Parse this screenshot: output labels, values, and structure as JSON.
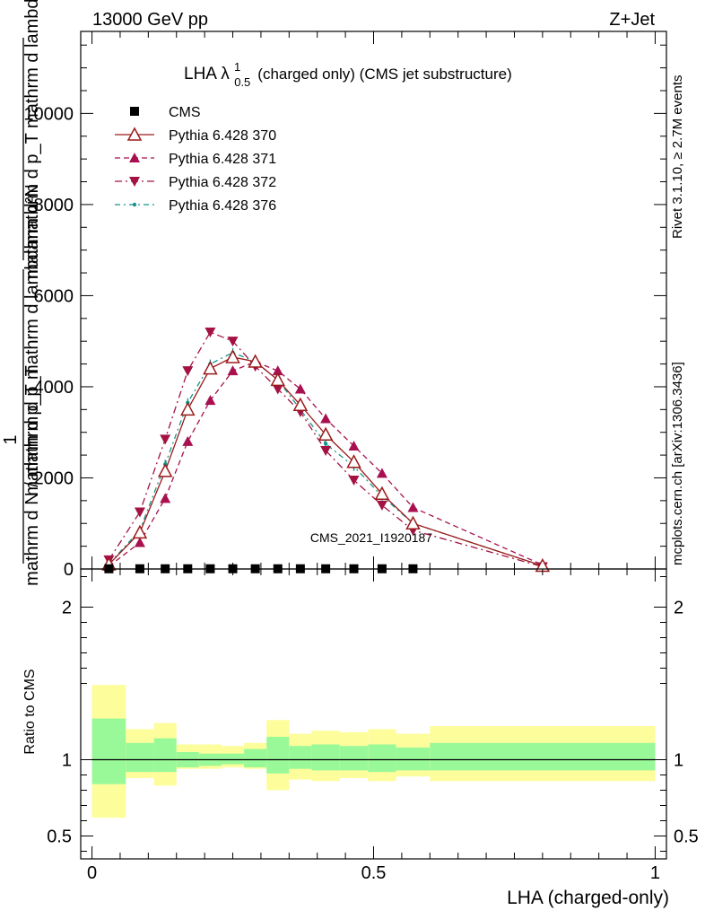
{
  "header": {
    "left": "13000 GeV pp",
    "right": "Z+Jet"
  },
  "side_labels": {
    "rivet": "Rivet 3.1.10, ≥ 2.7M events",
    "mcplots": "mcplots.cern.ch [arXiv:1306.3436]"
  },
  "watermark": "CMS_2021_I1920187",
  "colors": {
    "cms": "#000000",
    "p370": "#9b1b1b",
    "p371": "#a8104f",
    "p372": "#a31243",
    "p376": "#15958c",
    "band_inner": "#99f999",
    "band_outer": "#fdfd9b"
  },
  "chart_data": [
    {
      "type": "line",
      "title": "LHA λ¹₀.₅ (charged only) (CMS jet substructure)",
      "title_main": "LHA λ",
      "title_sup": "1",
      "title_sub": "0.5",
      "title_rest": "(charged only) (CMS jet substructure)",
      "ylabel_top": "mathrm d²N",
      "ylabel_num": "1",
      "ylabel_den": "mathrm d N / mathrm d p_T mathrm d p_T mathrm d lambda",
      "ylabel_lines": [
        "mathrm d²N",
        "mathrm d p_T mathrm d lambda",
        "mathrm d p_T mathrm d lambda",
        "1",
        "mathrm d N / mathrm d p_T"
      ],
      "ylim": [
        0,
        11800
      ],
      "xlim": [
        -0.02,
        1.02
      ],
      "y_ticks": [
        0,
        2000,
        4000,
        6000,
        8000,
        10000
      ],
      "y_tick_labels": [
        "0",
        "2000",
        "4000",
        "6000",
        "8000",
        "10000"
      ],
      "legend_position": "top-left",
      "series": [
        {
          "name": "CMS",
          "marker": "square",
          "x": [
            0.03,
            0.085,
            0.13,
            0.17,
            0.21,
            0.25,
            0.29,
            0.33,
            0.37,
            0.415,
            0.465,
            0.515,
            0.57,
            0.8
          ],
          "y": [
            5,
            5,
            5,
            5,
            5,
            5,
            5,
            5,
            5,
            5,
            5,
            5,
            5,
            5
          ]
        },
        {
          "name": "Pythia 6.428 370",
          "marker": "triangle-up-open",
          "x": [
            0.03,
            0.085,
            0.13,
            0.17,
            0.21,
            0.25,
            0.29,
            0.33,
            0.37,
            0.415,
            0.465,
            0.515,
            0.57,
            0.8
          ],
          "y": [
            100,
            800,
            2150,
            3500,
            4400,
            4650,
            4550,
            4150,
            3600,
            2950,
            2350,
            1650,
            1000,
            70
          ]
        },
        {
          "name": "Pythia 6.428 371",
          "marker": "triangle-up",
          "x": [
            0.03,
            0.085,
            0.13,
            0.17,
            0.21,
            0.25,
            0.29,
            0.33,
            0.37,
            0.415,
            0.465,
            0.515,
            0.57,
            0.8
          ],
          "y": [
            60,
            580,
            1550,
            2800,
            3700,
            4350,
            4550,
            4350,
            3950,
            3300,
            2700,
            2100,
            1350,
            90
          ]
        },
        {
          "name": "Pythia 6.428 372",
          "marker": "triangle-down",
          "x": [
            0.03,
            0.085,
            0.13,
            0.17,
            0.21,
            0.25,
            0.29,
            0.33,
            0.37,
            0.415,
            0.465,
            0.515,
            0.57,
            0.8
          ],
          "y": [
            200,
            1250,
            2850,
            4350,
            5200,
            5000,
            4450,
            3950,
            3450,
            2600,
            1950,
            1400,
            850,
            50
          ]
        },
        {
          "name": "Pythia 6.428 376",
          "marker": "dot",
          "x": [
            0.03,
            0.085,
            0.13,
            0.17,
            0.21,
            0.25,
            0.29,
            0.33,
            0.37,
            0.415,
            0.465,
            0.515,
            0.57,
            0.8
          ],
          "y": [
            110,
            850,
            2300,
            3650,
            4500,
            4750,
            4550,
            4150,
            3500,
            2750,
            2250,
            1600,
            1000,
            70
          ]
        }
      ]
    },
    {
      "type": "area",
      "ylabel": "Ratio to CMS",
      "xlabel": "LHA (charged-only)",
      "ylim": [
        0.35,
        2.25
      ],
      "xlim": [
        -0.02,
        1.02
      ],
      "x_ticks": [
        0,
        0.5,
        1
      ],
      "x_tick_labels": [
        "0",
        "0.5",
        "1"
      ],
      "y_ticks": [
        0.5,
        1,
        2
      ],
      "y_tick_labels": [
        "0.5",
        "1",
        "2"
      ],
      "bins": [
        {
          "x0": 0.0,
          "x1": 0.06,
          "inner": [
            0.84,
            1.27
          ],
          "outer": [
            0.62,
            1.49
          ]
        },
        {
          "x0": 0.06,
          "x1": 0.11,
          "inner": [
            0.92,
            1.11
          ],
          "outer": [
            0.88,
            1.2
          ]
        },
        {
          "x0": 0.11,
          "x1": 0.15,
          "inner": [
            0.92,
            1.14
          ],
          "outer": [
            0.83,
            1.24
          ]
        },
        {
          "x0": 0.15,
          "x1": 0.19,
          "inner": [
            0.95,
            1.05
          ],
          "outer": [
            0.94,
            1.1
          ]
        },
        {
          "x0": 0.19,
          "x1": 0.23,
          "inner": [
            0.96,
            1.04
          ],
          "outer": [
            0.94,
            1.1
          ]
        },
        {
          "x0": 0.23,
          "x1": 0.27,
          "inner": [
            0.97,
            1.04
          ],
          "outer": [
            0.95,
            1.09
          ]
        },
        {
          "x0": 0.27,
          "x1": 0.31,
          "inner": [
            0.95,
            1.07
          ],
          "outer": [
            0.94,
            1.11
          ]
        },
        {
          "x0": 0.31,
          "x1": 0.35,
          "inner": [
            0.91,
            1.15
          ],
          "outer": [
            0.8,
            1.26
          ]
        },
        {
          "x0": 0.35,
          "x1": 0.39,
          "inner": [
            0.94,
            1.09
          ],
          "outer": [
            0.87,
            1.17
          ]
        },
        {
          "x0": 0.39,
          "x1": 0.44,
          "inner": [
            0.93,
            1.1
          ],
          "outer": [
            0.86,
            1.19
          ]
        },
        {
          "x0": 0.44,
          "x1": 0.49,
          "inner": [
            0.93,
            1.09
          ],
          "outer": [
            0.88,
            1.18
          ]
        },
        {
          "x0": 0.49,
          "x1": 0.54,
          "inner": [
            0.92,
            1.1
          ],
          "outer": [
            0.86,
            1.2
          ]
        },
        {
          "x0": 0.54,
          "x1": 0.6,
          "inner": [
            0.93,
            1.08
          ],
          "outer": [
            0.89,
            1.17
          ]
        },
        {
          "x0": 0.6,
          "x1": 1.0,
          "inner": [
            0.93,
            1.11
          ],
          "outer": [
            0.86,
            1.22
          ]
        }
      ]
    }
  ]
}
